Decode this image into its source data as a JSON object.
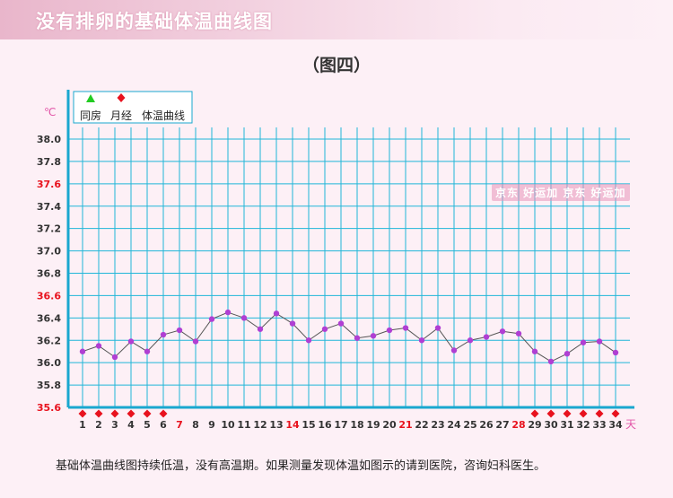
{
  "banner": {
    "title": "没有排卵的基础体温曲线图"
  },
  "subtitle": "（图四）",
  "caption": "基础体温曲线图持续低温，没有高温期。如果测量发现体温如图示的请到医院，咨询妇科医生。",
  "watermark": "京东 好运加 京东 好运加",
  "legend": {
    "items": [
      {
        "label": "同房",
        "symbol": "triangle",
        "color": "#22cc22"
      },
      {
        "label": "月经",
        "symbol": "diamond",
        "color": "#e8121e"
      },
      {
        "label": "体温曲线",
        "symbol": "none",
        "color": "#333333"
      }
    ]
  },
  "colors": {
    "grid": "#20b6d8",
    "axis": "#1aa7cf",
    "point": "#b03fd3",
    "line": "#555555",
    "highlight": "#e8121e",
    "tick": "#333333",
    "unit": "#e256a8"
  },
  "chart_data": {
    "type": "line",
    "ylabel": "℃",
    "xlabel": "天",
    "ylim": [
      35.6,
      38.0
    ],
    "yticks": [
      "38.0",
      "37.8",
      "37.6",
      "37.4",
      "37.2",
      "37.0",
      "36.8",
      "36.6",
      "36.4",
      "36.2",
      "36.0",
      "35.8",
      "35.6"
    ],
    "highlight_yticks": [
      "37.6",
      "36.6",
      "35.6"
    ],
    "x": [
      1,
      2,
      3,
      4,
      5,
      6,
      7,
      8,
      9,
      10,
      11,
      12,
      13,
      14,
      15,
      16,
      17,
      18,
      19,
      20,
      21,
      22,
      23,
      24,
      25,
      26,
      27,
      28,
      29,
      30,
      31,
      32,
      33,
      34
    ],
    "highlight_days": [
      7,
      14,
      21,
      28
    ],
    "series": [
      {
        "values": [
          36.1,
          36.15,
          36.05,
          36.19,
          36.1,
          36.25,
          36.29,
          36.19,
          36.39,
          36.45,
          36.4,
          36.3,
          36.44,
          36.35,
          36.2,
          36.3,
          36.35,
          36.22,
          36.24,
          36.29,
          36.31,
          36.2,
          36.31,
          36.11,
          36.2,
          36.23,
          36.28,
          36.26,
          36.1,
          36.01,
          36.08,
          36.18,
          36.19,
          36.09
        ]
      }
    ],
    "menstruation_days": [
      1,
      2,
      3,
      4,
      5,
      6,
      29,
      30,
      31,
      32,
      33,
      34
    ],
    "intercourse_days": [],
    "grid": true,
    "legend_position": "top-left"
  }
}
